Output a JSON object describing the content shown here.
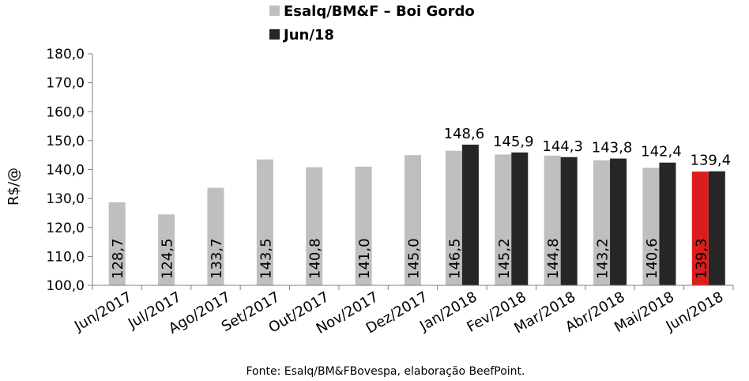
{
  "chart_data": {
    "type": "bar",
    "ylabel": "R$/@",
    "ylim": [
      100,
      180
    ],
    "yticks": [
      "100,0",
      "110,0",
      "120,0",
      "130,0",
      "140,0",
      "150,0",
      "160,0",
      "170,0",
      "180,0"
    ],
    "grid": false,
    "legend_placement": "top",
    "categories": [
      "Jun/2017",
      "Jul/2017",
      "Ago/2017",
      "Set/2017",
      "Out/2017",
      "Nov/2017",
      "Dez/2017",
      "Jan/2018",
      "Fev/2018",
      "Mar/2018",
      "Abr/2018",
      "Mai/2018",
      "Jun/2018"
    ],
    "series": [
      {
        "name": "Esalq/BM&F – Boi Gordo",
        "color": "#bfbfbf",
        "values": [
          128.7,
          124.5,
          133.7,
          143.5,
          140.8,
          141.0,
          145.0,
          146.5,
          145.2,
          144.8,
          143.2,
          140.6,
          139.3
        ],
        "labels": [
          "128,7",
          "124,5",
          "133,7",
          "143,5",
          "140,8",
          "141,0",
          "145,0",
          "146,5",
          "145,2",
          "144,8",
          "143,2",
          "140,6",
          "139,3"
        ],
        "highlight": {
          "index": 12,
          "color": "#dd1c1c"
        }
      },
      {
        "name": "Jun/18",
        "color": "#262626",
        "values": [
          null,
          null,
          null,
          null,
          null,
          null,
          null,
          148.6,
          145.9,
          144.3,
          143.8,
          142.4,
          139.4
        ],
        "labels": [
          null,
          null,
          null,
          null,
          null,
          null,
          null,
          "148,6",
          "145,9",
          "144,3",
          "143,8",
          "142,4",
          "139,4"
        ]
      }
    ],
    "source": "Fonte: Esalq/BM&FBovespa, elaboração BeefPoint."
  }
}
